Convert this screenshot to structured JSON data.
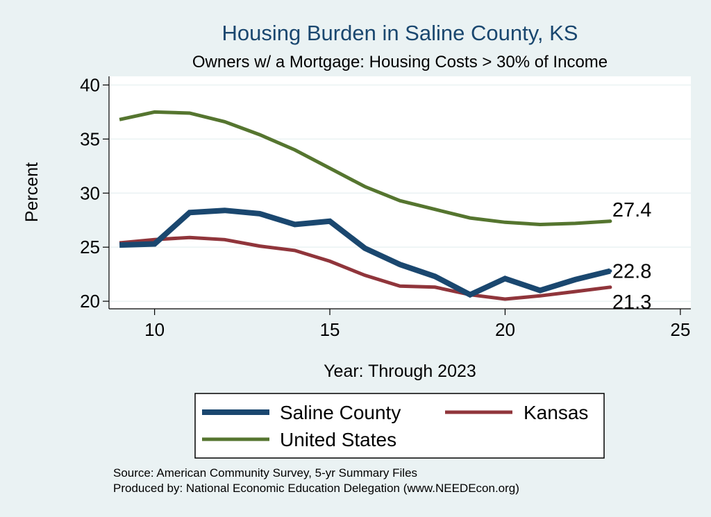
{
  "chart_data": {
    "type": "line",
    "title": "Housing Burden in Saline County, KS",
    "subtitle": "Owners w/ a Mortgage: Housing Costs > 30% of Income",
    "xlabel": "Year: Through 2023",
    "ylabel": "Percent",
    "xlim": [
      8.7,
      25.3
    ],
    "ylim": [
      19.3,
      40.8
    ],
    "xticks": [
      10,
      15,
      20,
      25
    ],
    "yticks": [
      20,
      25,
      30,
      35,
      40
    ],
    "grid": true,
    "legend_position": "bottom",
    "x": [
      9,
      10,
      11,
      12,
      13,
      14,
      15,
      16,
      17,
      18,
      19,
      20,
      21,
      22,
      23
    ],
    "series": [
      {
        "name": "Saline County",
        "color": "#1a476f",
        "width": 8,
        "values": [
          25.2,
          25.3,
          28.2,
          28.4,
          28.1,
          27.1,
          27.4,
          24.9,
          23.4,
          22.3,
          20.6,
          22.1,
          21.0,
          22.0,
          22.8
        ],
        "end_label": "22.8"
      },
      {
        "name": "Kansas",
        "color": "#90353b",
        "width": 5,
        "values": [
          25.4,
          25.7,
          25.9,
          25.7,
          25.1,
          24.7,
          23.7,
          22.4,
          21.4,
          21.3,
          20.6,
          20.2,
          20.5,
          20.9,
          21.3
        ],
        "end_label": "21.3"
      },
      {
        "name": "United States",
        "color": "#55752f",
        "width": 5,
        "values": [
          36.8,
          37.5,
          37.4,
          36.6,
          35.4,
          34.0,
          32.3,
          30.6,
          29.3,
          28.5,
          27.7,
          27.3,
          27.1,
          27.2,
          27.4
        ],
        "end_label": "27.4"
      }
    ],
    "notes": [
      "Source: American Community Survey, 5-yr Summary Files",
      "Produced by: National Economic Education Delegation (www.NEEDEcon.org)"
    ]
  }
}
